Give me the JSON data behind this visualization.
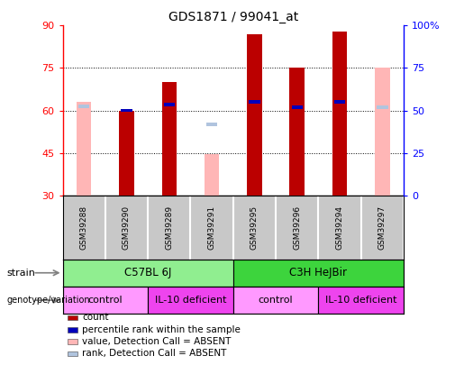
{
  "title": "GDS1871 / 99041_at",
  "samples": [
    "GSM39288",
    "GSM39290",
    "GSM39289",
    "GSM39291",
    "GSM39295",
    "GSM39296",
    "GSM39294",
    "GSM39297"
  ],
  "ylim": [
    30,
    90
  ],
  "y2lim": [
    0,
    100
  ],
  "yticks": [
    30,
    45,
    60,
    75,
    90
  ],
  "y2ticks": [
    0,
    25,
    50,
    75,
    100
  ],
  "count_values": [
    null,
    60,
    70,
    null,
    87,
    75,
    88,
    null
  ],
  "rank_values": [
    null,
    60,
    62,
    null,
    63,
    61,
    63,
    null
  ],
  "absent_value_values": [
    63,
    null,
    null,
    44.5,
    null,
    null,
    null,
    75
  ],
  "absent_rank_values": [
    61.5,
    null,
    null,
    55,
    null,
    null,
    null,
    61
  ],
  "strain_groups": [
    {
      "label": "C57BL 6J",
      "start": 0,
      "end": 3,
      "color": "#90ee90"
    },
    {
      "label": "C3H HeJBir",
      "start": 4,
      "end": 7,
      "color": "#3dd43d"
    }
  ],
  "genotype_groups": [
    {
      "label": "control",
      "start": 0,
      "end": 1,
      "color": "#ff99ff"
    },
    {
      "label": "IL-10 deficient",
      "start": 2,
      "end": 3,
      "color": "#ee44ee"
    },
    {
      "label": "control",
      "start": 4,
      "end": 5,
      "color": "#ff99ff"
    },
    {
      "label": "IL-10 deficient",
      "start": 6,
      "end": 7,
      "color": "#ee44ee"
    }
  ],
  "count_color": "#bb0000",
  "rank_color": "#0000bb",
  "absent_value_color": "#ffb6b6",
  "absent_rank_color": "#b0c4de",
  "bar_width": 0.35,
  "legend_items": [
    {
      "label": "count",
      "color": "#bb0000"
    },
    {
      "label": "percentile rank within the sample",
      "color": "#0000bb"
    },
    {
      "label": "value, Detection Call = ABSENT",
      "color": "#ffb6b6"
    },
    {
      "label": "rank, Detection Call = ABSENT",
      "color": "#b0c4de"
    }
  ]
}
